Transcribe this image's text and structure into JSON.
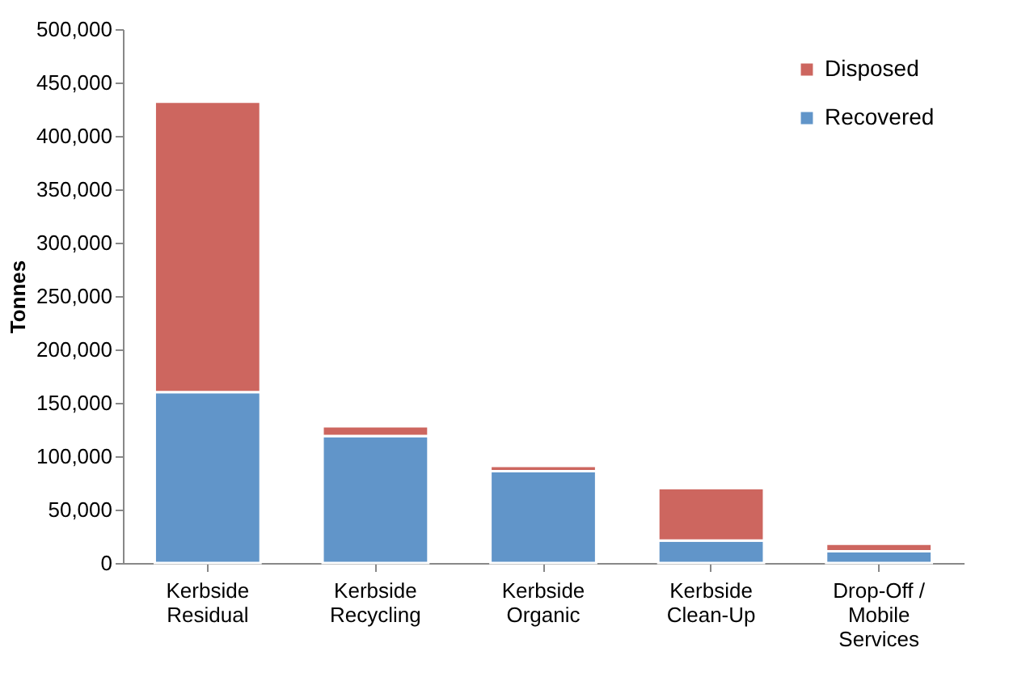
{
  "chart_data": {
    "type": "bar",
    "stacked": true,
    "ylabel": "Tonnes",
    "categories": [
      "Kerbside\nResidual",
      "Kerbside\nRecycling",
      "Kerbside\nOrganic",
      "Kerbside\nClean-Up",
      "Drop-Off /\nMobile\nServices"
    ],
    "series": [
      {
        "name": "Recovered",
        "color": "#6195c9",
        "values": [
          160000,
          119000,
          86000,
          21000,
          11000
        ]
      },
      {
        "name": "Disposed",
        "color": "#cd665f",
        "values": [
          272000,
          9000,
          5000,
          49000,
          7000
        ]
      }
    ],
    "ylim": [
      0,
      500000
    ],
    "yticks": [
      0,
      {
        "value": 50000,
        "label": "50,000"
      },
      {
        "value": 100000,
        "label": "100,000"
      },
      {
        "value": 150000,
        "label": "150,000"
      },
      {
        "value": 200000,
        "label": "200,000"
      },
      {
        "value": 250000,
        "label": "250,000"
      },
      {
        "value": 300000,
        "label": "300,000"
      },
      {
        "value": 350000,
        "label": "350,000"
      },
      {
        "value": 400000,
        "label": "400,000"
      },
      {
        "value": 450000,
        "label": "450,000"
      },
      {
        "value": 500000,
        "label": "500,000"
      }
    ],
    "grid": false,
    "legend": "top right"
  }
}
